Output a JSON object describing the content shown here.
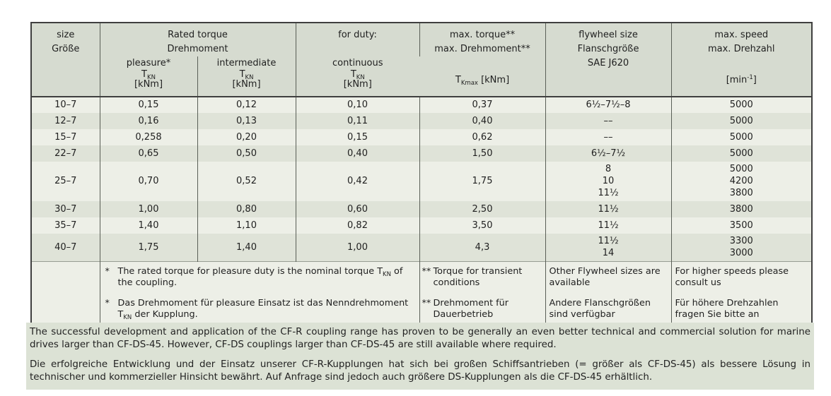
{
  "colors": {
    "page_bg": "#ffffff",
    "header_bg": "#d6dbd0",
    "row_light": "#edefe7",
    "row_dark": "#dfe3d8",
    "note_bg": "#dce2d5",
    "border_dark": "#3f3f3f",
    "border_mid": "#5a5f57",
    "text": "#1f1f1f"
  },
  "table": {
    "header": {
      "size_en": "size",
      "size_de": "Größe",
      "rated_torque_en": "Rated torque",
      "rated_torque_de": "Drehmoment",
      "for_duty": "for duty:",
      "pleasure": "pleasure*",
      "intermediate": "intermediate",
      "continuous": "continuous",
      "tkn_base": "T",
      "tkn_sub": "KN",
      "tkn_unit": "[kNm]",
      "max_torque_en": "max. torque**",
      "max_torque_de": "max. Drehmoment**",
      "tkmax_base": "T",
      "tkmax_sub": "Kmax",
      "tkmax_unit": "[kNm]",
      "flywheel_en": "flywheel size",
      "flywheel_de": "Flanschgröße",
      "flywheel_standard": "SAE J620",
      "speed_en": "max. speed",
      "speed_de": "max. Drehzahl",
      "speed_unit_pre": "[min",
      "speed_unit_sup": "-1",
      "speed_unit_post": "]"
    },
    "rows": [
      {
        "size": "10–7",
        "pleasure": "0,15",
        "intermediate": "0,12",
        "continuous": "0,10",
        "max_torque": "0,37",
        "flywheel": "6½–7½–8",
        "speed": "5000"
      },
      {
        "size": "12–7",
        "pleasure": "0,16",
        "intermediate": "0,13",
        "continuous": "0,11",
        "max_torque": "0,40",
        "flywheel": "––",
        "speed": "5000"
      },
      {
        "size": "15–7",
        "pleasure": "0,258",
        "intermediate": "0,20",
        "continuous": "0,15",
        "max_torque": "0,62",
        "flywheel": "––",
        "speed": "5000"
      },
      {
        "size": "22–7",
        "pleasure": "0,65",
        "intermediate": "0,50",
        "continuous": "0,40",
        "max_torque": "1,50",
        "flywheel": "6½–7½",
        "speed": "5000"
      },
      {
        "size": "25–7",
        "pleasure": "0,70",
        "intermediate": "0,52",
        "continuous": "0,42",
        "max_torque": "1,75",
        "flywheel": "8\n10\n11½",
        "speed": "5000\n4200\n3800"
      },
      {
        "size": "30–7",
        "pleasure": "1,00",
        "intermediate": "0,80",
        "continuous": "0,60",
        "max_torque": "2,50",
        "flywheel": "11½",
        "speed": "3800"
      },
      {
        "size": "35–7",
        "pleasure": "1,40",
        "intermediate": "1,10",
        "continuous": "0,82",
        "max_torque": "3,50",
        "flywheel": "11½",
        "speed": "3500"
      },
      {
        "size": "40–7",
        "pleasure": "1,75",
        "intermediate": "1,40",
        "continuous": "1,00",
        "max_torque": "4,3",
        "flywheel": "11½\n14",
        "speed": "3300\n3000"
      }
    ],
    "footnotes": {
      "star_marker": "*",
      "star1_pre": "The rated torque for pleasure duty is the nominal torque T",
      "star1_sub": "KN",
      "star1_post": " of the coupling.",
      "star2_pre": "Das Drehmoment für pleasure Einsatz ist das Nenndrehmoment T",
      "star2_sub": "KN",
      "star2_post": " der Kupplung.",
      "dstar_marker": "**",
      "dstar1": "Torque for transient conditions",
      "dstar2": "Drehmoment für Dauerbetrieb",
      "flywheel_en": "Other Flywheel sizes are available",
      "flywheel_de": "Andere Flanschgrößen sind verfügbar",
      "speed_en": "For higher speeds please consult us",
      "speed_de": "Für höhere Drehzahlen fragen Sie bitte an"
    }
  },
  "bottom_text": {
    "en": "The successful development and application of the CF-R coupling range has proven to be generally an even better technical and commercial solution for marine drives larger than CF-DS-45. However, CF-DS couplings larger than CF-DS-45 are still available where required.",
    "de": "Die erfolgreiche Entwicklung und der Einsatz unserer CF-R-Kupplungen hat sich bei großen Schiffsantrieben (= größer als CF-DS-45) als bessere Lösung in technischer und kommerzieller Hinsicht bewährt. Auf Anfrage sind jedoch auch größere DS-Kupplungen als die CF-DS-45 erhältlich."
  }
}
